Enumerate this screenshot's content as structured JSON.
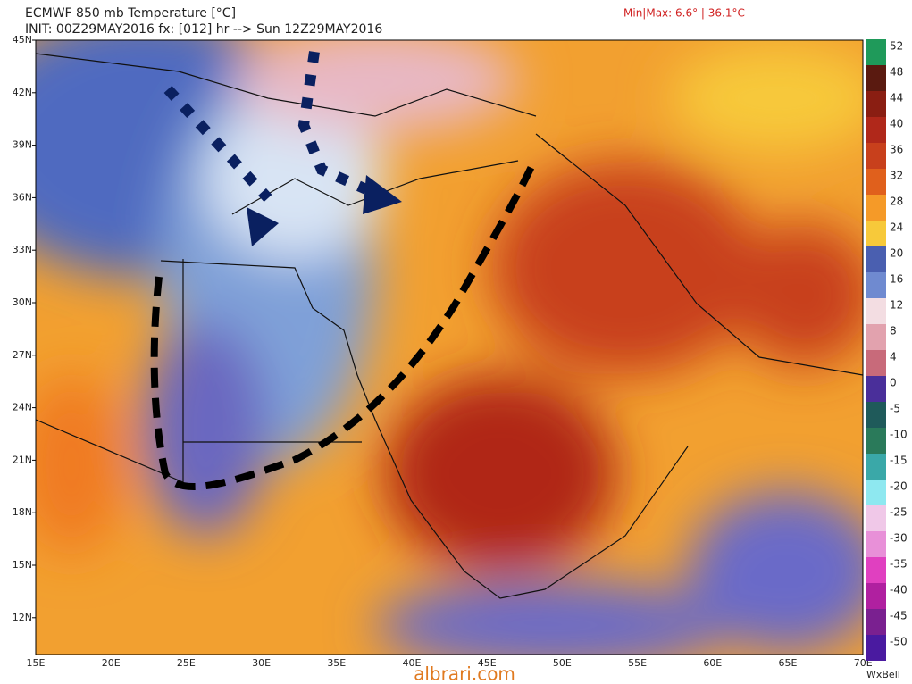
{
  "header": {
    "title": "ECMWF 850 mb Temperature [°C]",
    "init": "INIT: 00Z29MAY2016 fx: [012] hr --> Sun 12Z29MAY2016",
    "minmax": "Min|Max: 6.6° | 36.1°C"
  },
  "map": {
    "lat_labels": [
      "45N",
      "42N",
      "39N",
      "36N",
      "33N",
      "30N",
      "27N",
      "24N",
      "21N",
      "18N",
      "15N",
      "12N"
    ],
    "lon_labels": [
      "15E",
      "20E",
      "25E",
      "30E",
      "35E",
      "40E",
      "45E",
      "50E",
      "55E",
      "60E",
      "65E",
      "70E"
    ]
  },
  "colorbar": {
    "labels": [
      "52",
      "48",
      "44",
      "40",
      "36",
      "32",
      "28",
      "24",
      "20",
      "16",
      "12",
      "8",
      "4",
      "0",
      "-5",
      "-10",
      "-15",
      "-20",
      "-25",
      "-30",
      "-35",
      "-40",
      "-45",
      "-50"
    ],
    "colors": [
      "#1f9a5a",
      "#5a1a10",
      "#8a1e12",
      "#b0281a",
      "#c8401c",
      "#e0601c",
      "#f59a28",
      "#f7c93a",
      "#4a5fb0",
      "#6f8ad0",
      "#f3dde2",
      "#e2a2ae",
      "#c86a7a",
      "#4a2f9a",
      "#1f5a5a",
      "#2a7a5a",
      "#3aa8a8",
      "#8ee8f0",
      "#f0c8e8",
      "#e890d8",
      "#e040c0",
      "#b020a0",
      "#7a2090",
      "#4a1aa0"
    ]
  },
  "footer": {
    "watermark": "albrari.com",
    "brand": "WxBell"
  }
}
